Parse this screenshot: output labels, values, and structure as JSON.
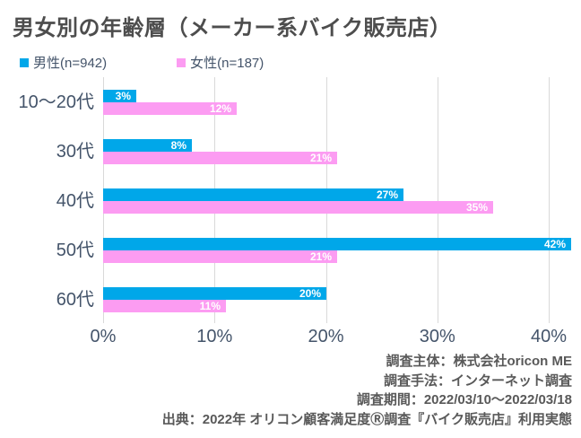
{
  "title": "男女別の年齢層（メーカー系バイク販売店）",
  "legend": [
    {
      "label": "男性(n=942)",
      "color": "#00A7E9"
    },
    {
      "label": "女性(n=187)",
      "color": "#FC9CF2"
    }
  ],
  "chart_data": {
    "type": "bar",
    "orientation": "horizontal",
    "title": "男女別の年齢層（メーカー系バイク販売店）",
    "categories": [
      "10～20代",
      "30代",
      "40代",
      "50代",
      "60代"
    ],
    "series": [
      {
        "name": "男性(n=942)",
        "color": "#00A7E9",
        "values": [
          3,
          8,
          27,
          42,
          20
        ]
      },
      {
        "name": "女性(n=187)",
        "color": "#FC9CF2",
        "values": [
          12,
          21,
          35,
          21,
          11
        ]
      }
    ],
    "value_suffix": "%",
    "x_ticks": [
      "0%",
      "10%",
      "20%",
      "30%",
      "40%"
    ],
    "x_tick_values": [
      0,
      10,
      20,
      30,
      40
    ],
    "xlim": [
      0,
      42.5
    ],
    "grid": "vertical",
    "legend_position": "top-left",
    "data_labels": "inside-end"
  },
  "footer": {
    "lines": [
      "調査主体：株式会社oricon ME",
      "調査手法：インターネット調査",
      "調査期間：2022/03/10～2022/03/18",
      "出典：2022年 オリコン顧客満足度Ⓡ調査『バイク販売店』利用実態"
    ]
  },
  "colors": {
    "male": "#00A7E9",
    "female": "#FC9CF2",
    "title_text": "#4D4D4D",
    "axis_text": "#44546A",
    "grid_line": "#D9D9D9",
    "footer_text": "#595959",
    "bar_label_text": "#FFFFFF",
    "background": "#FFFFFF"
  }
}
